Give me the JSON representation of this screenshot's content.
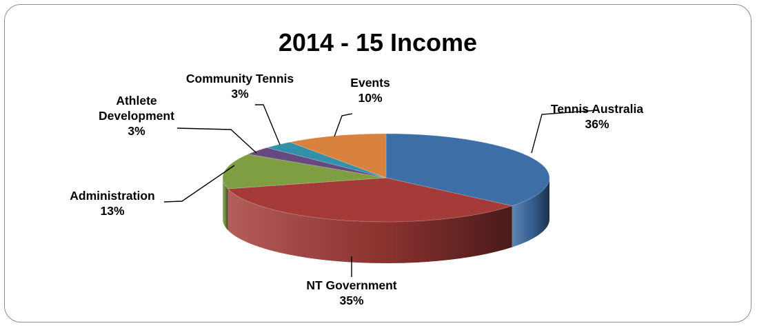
{
  "chart_data": {
    "type": "pie",
    "title": "2014 - 15 Income",
    "slices": [
      {
        "label_lines": [
          "Tennis Australia"
        ],
        "pct_label": "36%",
        "value": 36,
        "color": "#3d6ea6"
      },
      {
        "label_lines": [
          "NT Government"
        ],
        "pct_label": "35%",
        "value": 35,
        "color": "#a43b38"
      },
      {
        "label_lines": [
          "Administration"
        ],
        "pct_label": "13%",
        "value": 13,
        "color": "#7f9e41"
      },
      {
        "label_lines": [
          "Athlete",
          "Development"
        ],
        "pct_label": "3%",
        "value": 3,
        "color": "#66497f"
      },
      {
        "label_lines": [
          "Community Tennis"
        ],
        "pct_label": "3%",
        "value": 3,
        "color": "#3390a8"
      },
      {
        "label_lines": [
          "Events"
        ],
        "pct_label": "10%",
        "value": 10,
        "color": "#d9823d"
      }
    ],
    "legend": "none"
  }
}
